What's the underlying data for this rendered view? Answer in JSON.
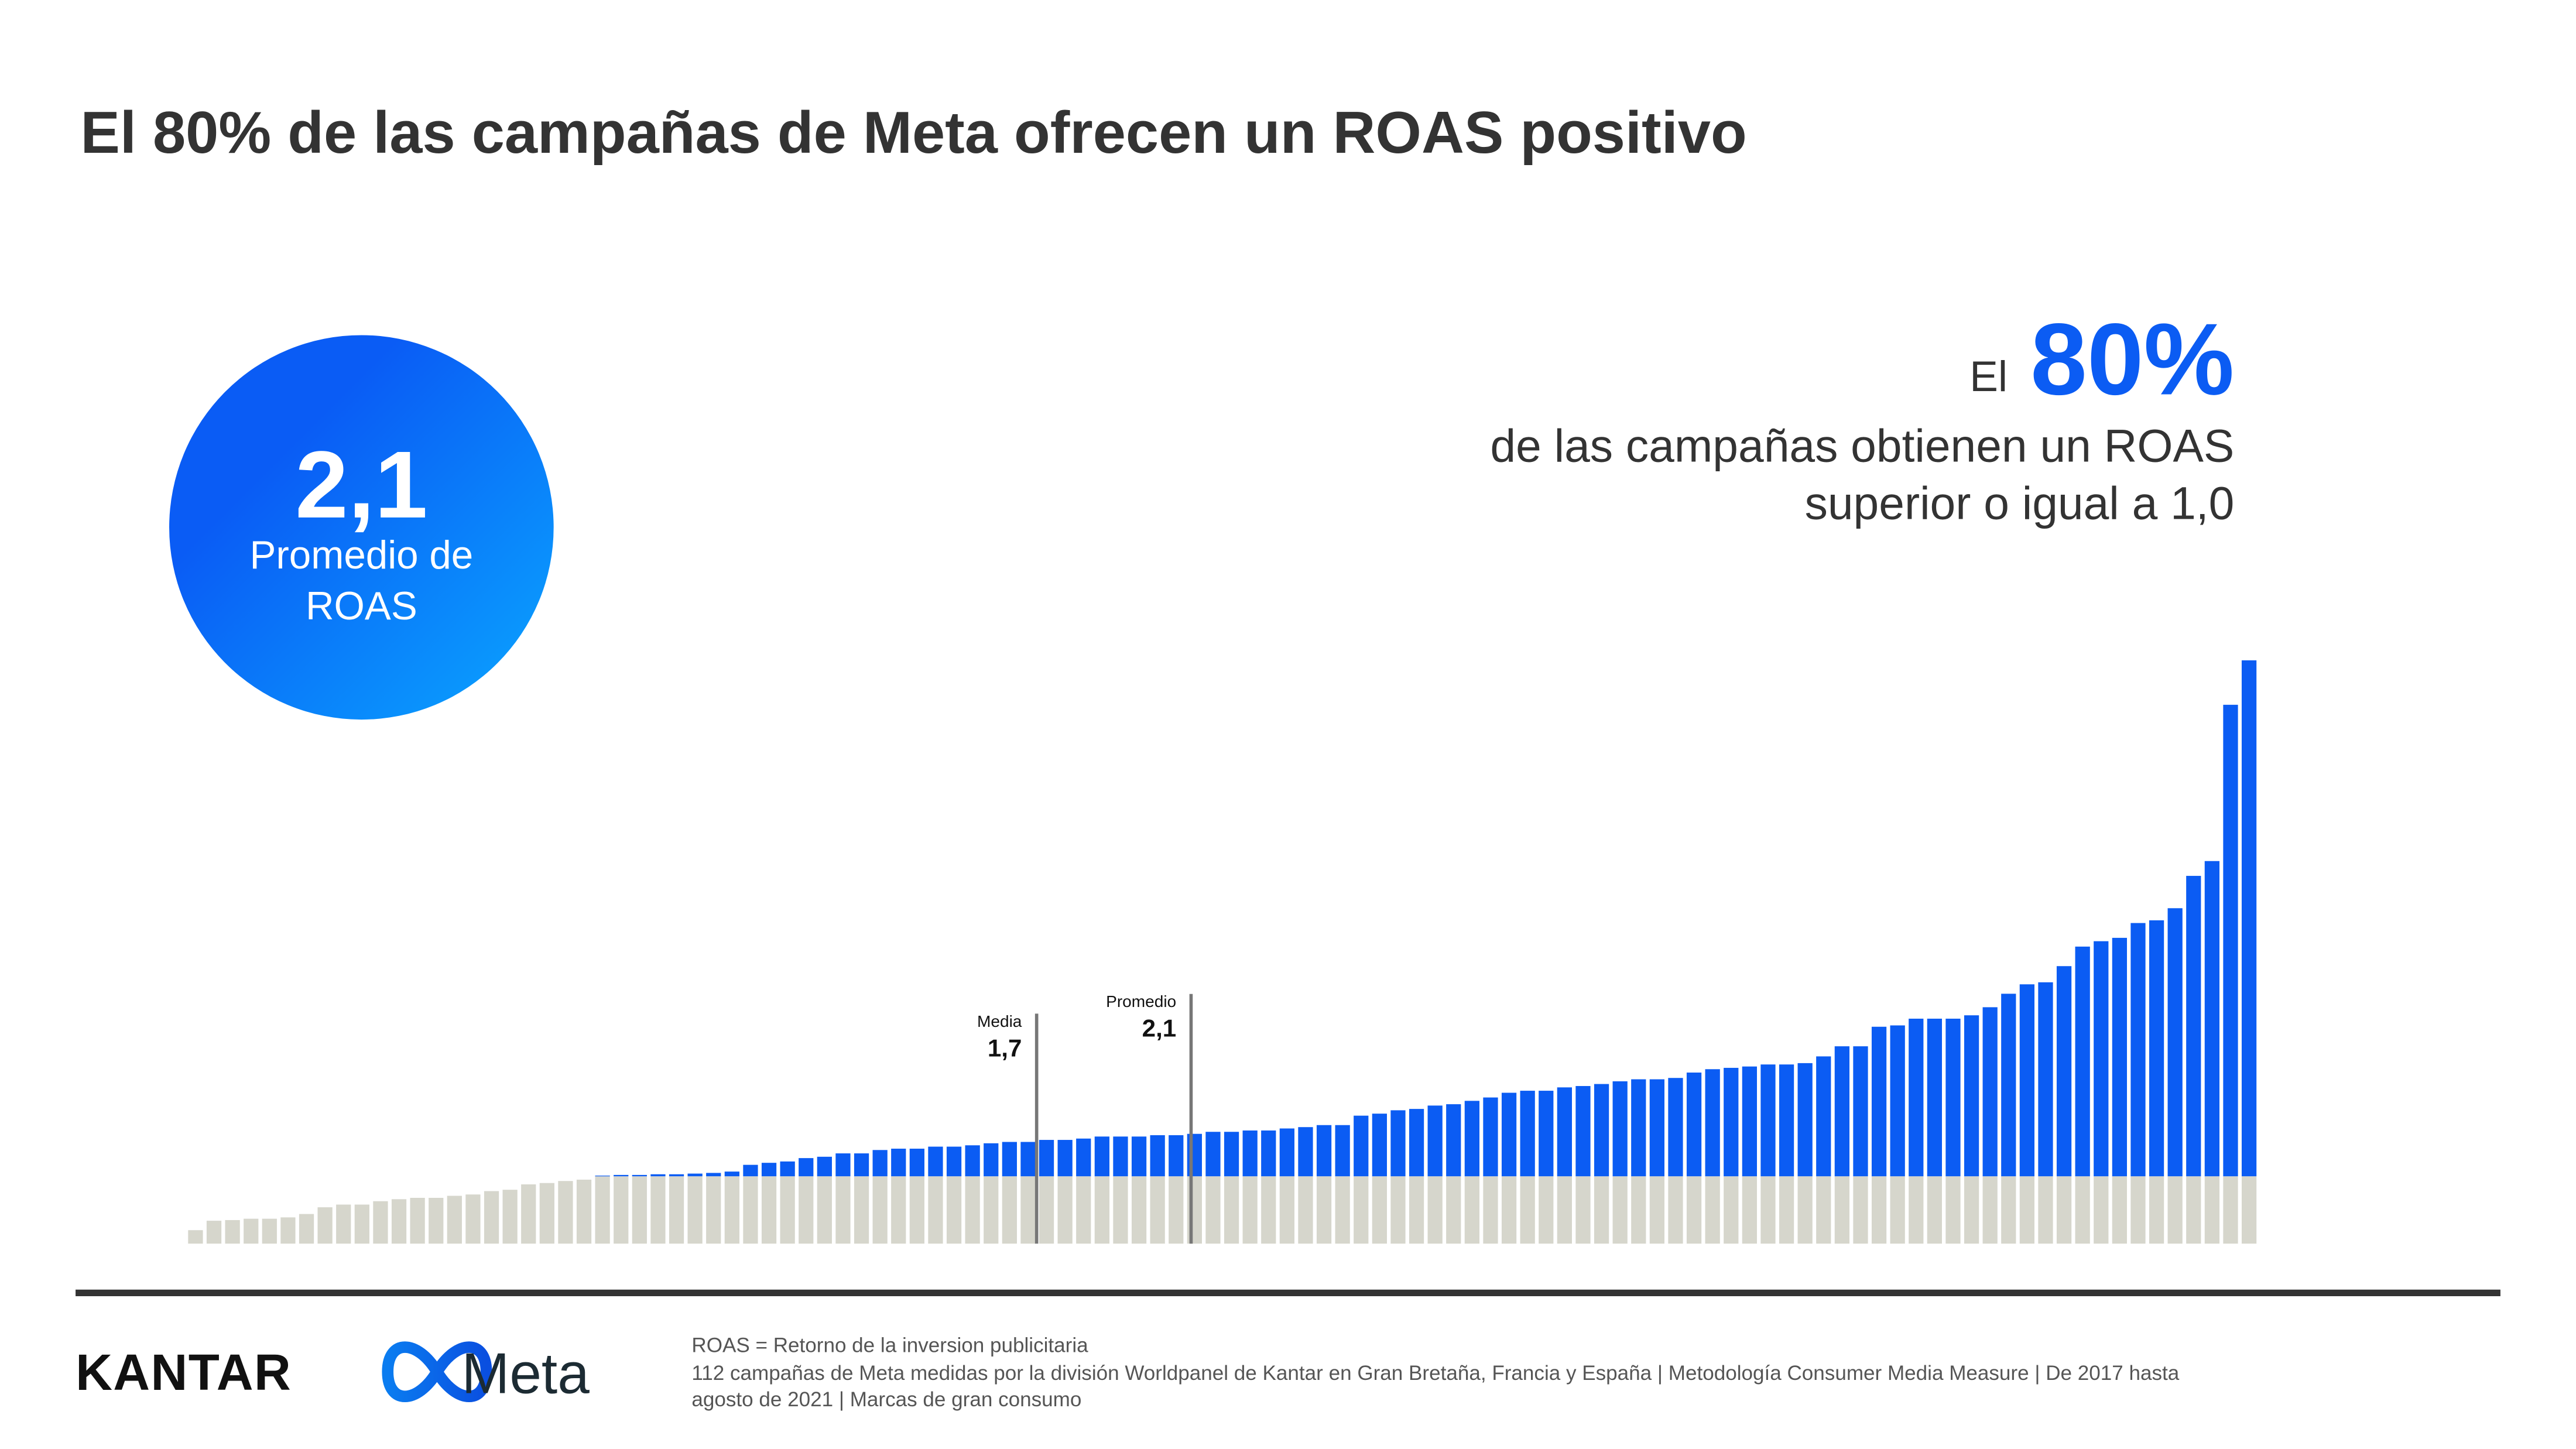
{
  "chart_data": {
    "type": "bar",
    "title": "El 80% de las campañas de Meta ofrecen un ROAS positivo",
    "values": [
      0.2,
      0.34,
      0.35,
      0.37,
      0.37,
      0.39,
      0.44,
      0.54,
      0.58,
      0.58,
      0.63,
      0.66,
      0.68,
      0.68,
      0.71,
      0.73,
      0.78,
      0.8,
      0.88,
      0.9,
      0.93,
      0.95,
      1.01,
      1.02,
      1.02,
      1.03,
      1.03,
      1.04,
      1.05,
      1.07,
      1.17,
      1.2,
      1.22,
      1.27,
      1.29,
      1.34,
      1.34,
      1.39,
      1.41,
      1.41,
      1.44,
      1.44,
      1.46,
      1.49,
      1.51,
      1.51,
      1.54,
      1.54,
      1.56,
      1.59,
      1.59,
      1.59,
      1.61,
      1.61,
      1.63,
      1.66,
      1.66,
      1.68,
      1.68,
      1.71,
      1.73,
      1.76,
      1.76,
      1.9,
      1.93,
      1.98,
      2.0,
      2.05,
      2.07,
      2.12,
      2.17,
      2.24,
      2.27,
      2.27,
      2.32,
      2.34,
      2.37,
      2.41,
      2.44,
      2.44,
      2.46,
      2.54,
      2.59,
      2.61,
      2.63,
      2.66,
      2.66,
      2.68,
      2.78,
      2.93,
      2.93,
      3.22,
      3.24,
      3.34,
      3.34,
      3.34,
      3.39,
      3.51,
      3.71,
      3.85,
      3.88,
      4.12,
      4.41,
      4.49,
      4.54,
      4.76,
      4.8,
      4.98,
      5.46,
      5.68,
      8.0,
      8.66
    ],
    "split_value": 1.0,
    "color_below": "#d6d6cc",
    "color_above": "#0b5cf3",
    "reference_lines": [
      {
        "name": "Media",
        "value": {
          "value": 1.7,
          "label": "1,7"
        }
      },
      {
        "name": "Promedio",
        "value": {
          "value": 2.1,
          "label": "2,1"
        }
      }
    ],
    "kpi": {
      "value": "2,1",
      "label_lines": [
        "Promedio de",
        "ROAS"
      ]
    },
    "callout": {
      "prefix": "El",
      "value": "80%",
      "lines": [
        "de las campañas obtienen un ROAS",
        "superior o igual a 1,0"
      ]
    }
  },
  "footer": {
    "logos": [
      "KANTAR",
      "Meta"
    ],
    "notes": [
      "ROAS = Retorno de la inversion publicitaria",
      "112 campañas de Meta medidas por la división Worldpanel de Kantar en Gran Bretaña, Francia y España | Metodología Consumer Media Measure | De 2017 hasta",
      "agosto de 2021 | Marcas de gran consumo"
    ]
  }
}
